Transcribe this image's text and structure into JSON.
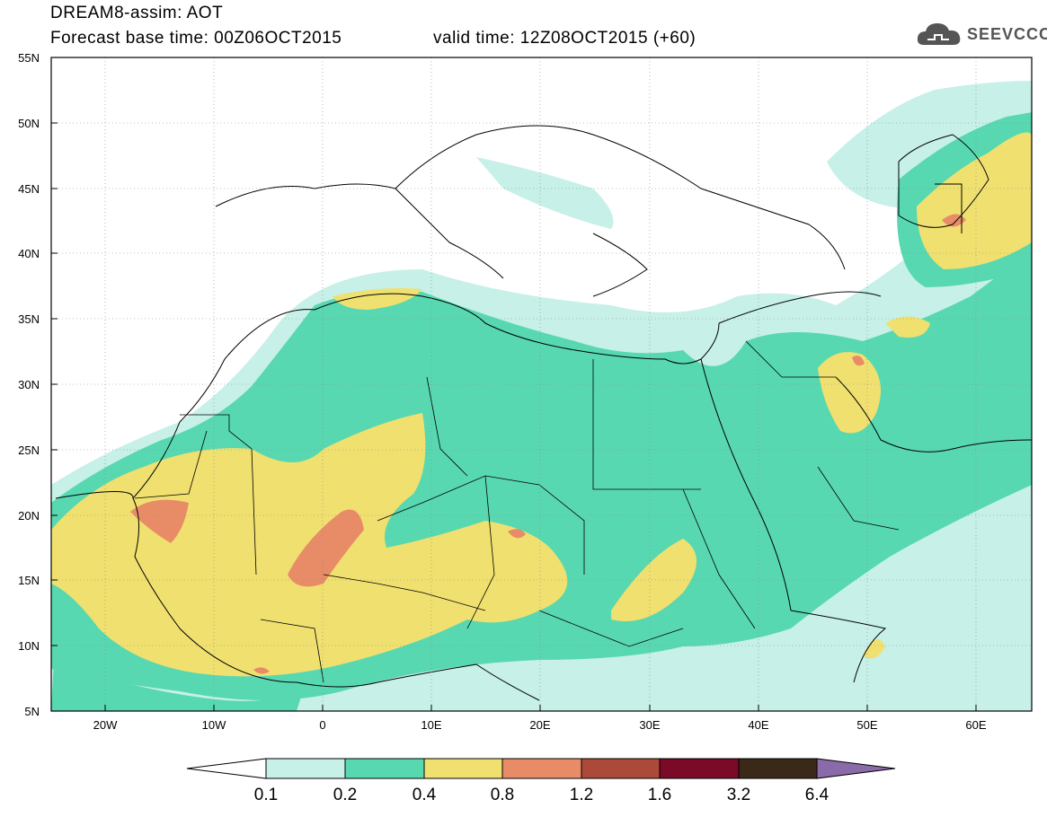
{
  "header": {
    "line1": "DREAM8-assim: AOT",
    "line2": "Forecast base time: 00Z06OCT2015",
    "valid": "valid time: 12Z08OCT2015 (+60)"
  },
  "logo": {
    "text": "SEEVCCC",
    "icon": "cloud-icon"
  },
  "map": {
    "lat_labels": [
      "55N",
      "50N",
      "45N",
      "40N",
      "35N",
      "30N",
      "25N",
      "20N",
      "15N",
      "10N",
      "5N"
    ],
    "lon_labels": [
      "20W",
      "10W",
      "0",
      "10E",
      "20E",
      "30E",
      "40E",
      "50E",
      "60E"
    ]
  },
  "legend": {
    "ticks": [
      "0.1",
      "0.2",
      "0.4",
      "0.8",
      "1.2",
      "1.6",
      "3.2",
      "6.4"
    ],
    "colors": [
      "#c6f0e8",
      "#58d8b0",
      "#f0e070",
      "#e88c68",
      "#ac4a3a",
      "#7a0a28",
      "#3a2818",
      "#8a6aa8"
    ],
    "under_color": "#ffffff"
  }
}
